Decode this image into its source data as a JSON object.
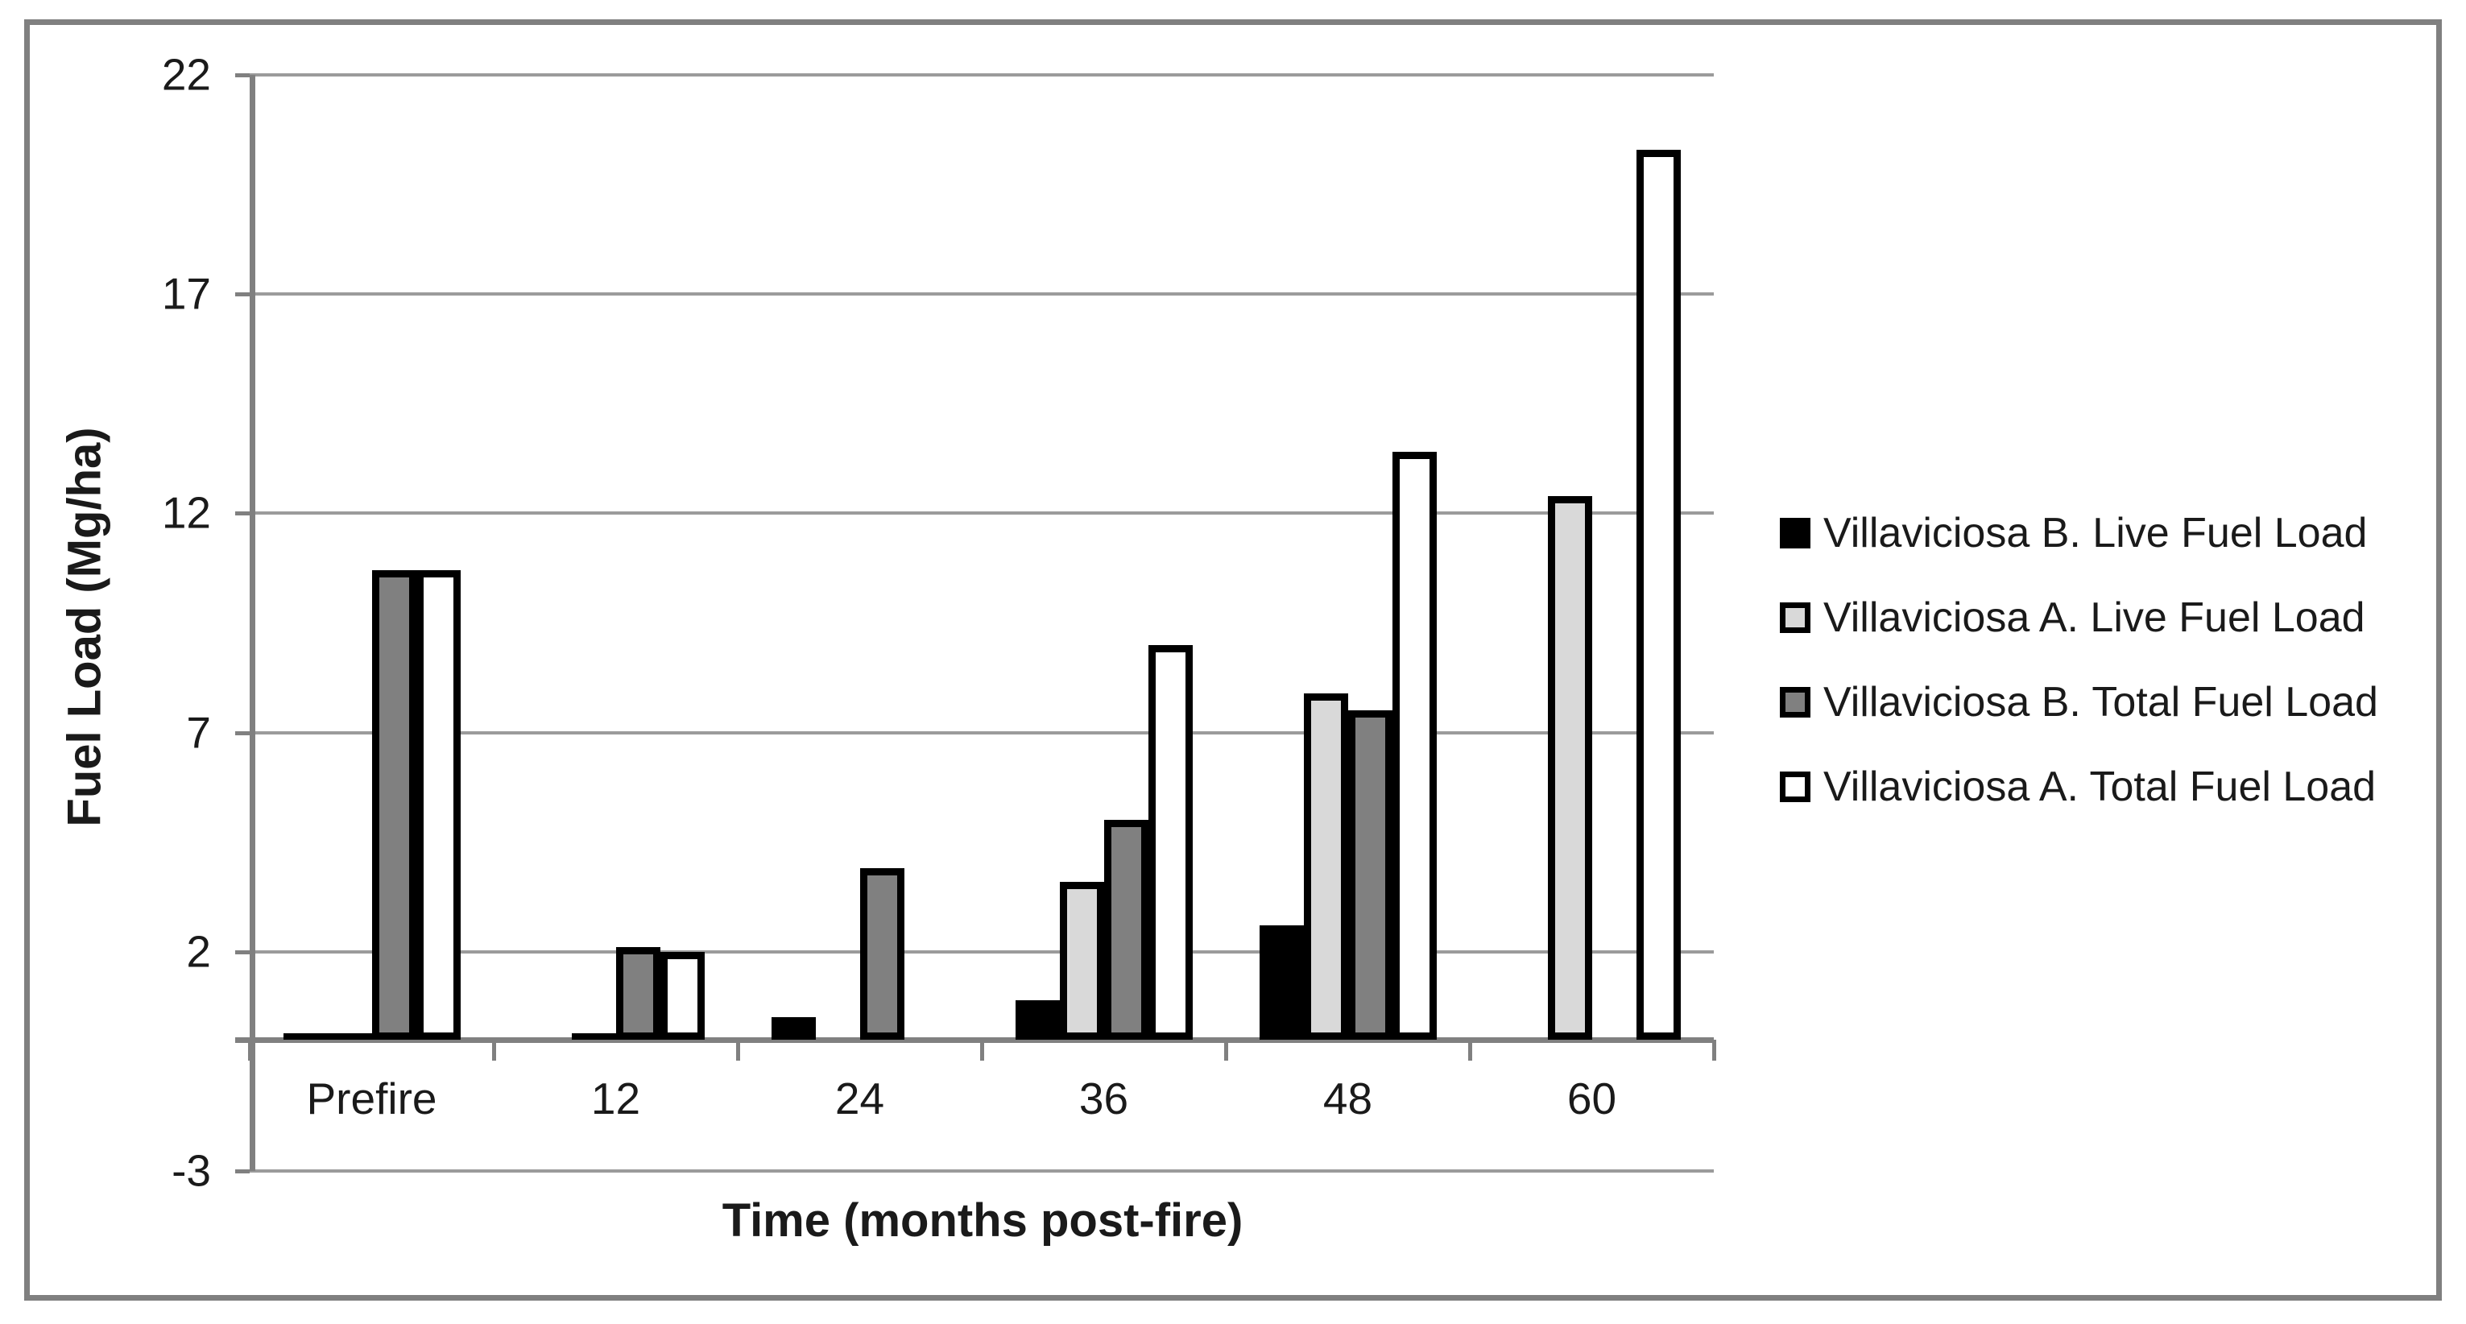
{
  "chart_data": {
    "type": "bar",
    "title": "",
    "xlabel": "Time (months post-fire)",
    "ylabel": "Fuel Load (Mg/ha)",
    "categories": [
      "Prefire",
      "12",
      "24",
      "36",
      "48",
      "60"
    ],
    "series": [
      {
        "name": "Villaviciosa B. Live Fuel Load",
        "color": "#000000",
        "values": [
          0.1,
          0,
          0.5,
          0.9,
          2.6,
          0
        ]
      },
      {
        "name": "Villaviciosa A. Live Fuel Load",
        "color": "#d9d9d9",
        "values": [
          0.1,
          0.1,
          0,
          3.6,
          7.9,
          12.4
        ]
      },
      {
        "name": "Villaviciosa B. Total Fuel Load",
        "color": "#808080",
        "values": [
          10.7,
          2.1,
          3.9,
          5.0,
          7.5,
          0
        ]
      },
      {
        "name": "Villaviciosa A. Total Fuel Load",
        "color": "#ffffff",
        "values": [
          10.7,
          2.0,
          0,
          9.0,
          13.4,
          20.3
        ]
      }
    ],
    "y_axis": {
      "min": -3,
      "max": 22,
      "step": 5,
      "ticks": [
        22,
        17,
        12,
        7,
        2,
        -3
      ]
    },
    "grid": true,
    "legend_position": "right",
    "colors": {
      "frame": "#808080",
      "gridline": "#9b9b9b",
      "axis": "#808080",
      "bar_outline": "#000000",
      "text": "#1a1a1a"
    }
  }
}
